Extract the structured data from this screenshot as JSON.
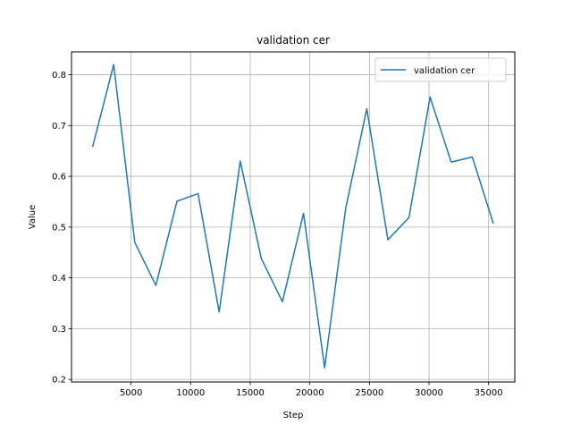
{
  "chart_data": {
    "type": "line",
    "title": "validation cer",
    "xlabel": "Step",
    "ylabel": "Value",
    "xlim": [
      0,
      37200
    ],
    "ylim": [
      0.195,
      0.845
    ],
    "xticks": [
      5000,
      10000,
      15000,
      20000,
      25000,
      30000,
      35000
    ],
    "yticks": [
      0.2,
      0.3,
      0.4,
      0.5,
      0.6,
      0.7,
      0.8
    ],
    "xtick_labels": [
      "5000",
      "10000",
      "15000",
      "20000",
      "25000",
      "30000",
      "35000"
    ],
    "ytick_labels": [
      "0.2",
      "0.3",
      "0.4",
      "0.5",
      "0.6",
      "0.7",
      "0.8"
    ],
    "grid": true,
    "legend": {
      "position": "upper right",
      "entries": [
        "validation cer"
      ]
    },
    "series": [
      {
        "name": "validation cer",
        "color": "#1f77b4",
        "x": [
          1770,
          3540,
          5310,
          7080,
          8850,
          10620,
          12390,
          14160,
          15930,
          17700,
          19470,
          21240,
          23010,
          24780,
          26550,
          28320,
          30090,
          31860,
          33630,
          35400
        ],
        "y": [
          0.658,
          0.82,
          0.47,
          0.385,
          0.551,
          0.566,
          0.333,
          0.63,
          0.438,
          0.353,
          0.527,
          0.223,
          0.537,
          0.733,
          0.475,
          0.519,
          0.756,
          0.628,
          0.638,
          0.507
        ]
      }
    ]
  }
}
